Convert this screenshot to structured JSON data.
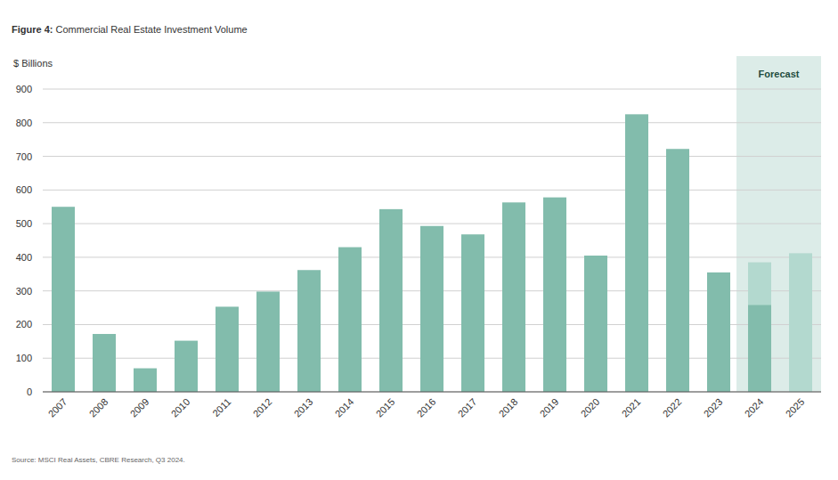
{
  "chart_data": {
    "type": "bar",
    "title": "Figure 4: Commercial Real Estate Investment Volume",
    "y_label": "$ Billions",
    "source": "Source: MSCI Real Assets, CBRE Research, Q3 2024.",
    "categories": [
      "2007",
      "2008",
      "2009",
      "2010",
      "2011",
      "2012",
      "2013",
      "2014",
      "2015",
      "2016",
      "2017",
      "2018",
      "2019",
      "2020",
      "2021",
      "2022",
      "2023",
      "2024",
      "2025"
    ],
    "series": [
      {
        "color": "#b3d9cf",
        "values": [
          null,
          null,
          null,
          null,
          null,
          null,
          null,
          null,
          null,
          null,
          null,
          null,
          null,
          null,
          null,
          null,
          null,
          385,
          412
        ]
      },
      {
        "color": "#82bcac",
        "values": [
          550,
          172,
          70,
          152,
          253,
          298,
          362,
          430,
          543,
          493,
          468,
          563,
          578,
          405,
          825,
          722,
          355,
          258,
          null
        ]
      }
    ],
    "annotations": [
      {
        "text": "Forecast",
        "categories": [
          "2024",
          "2025"
        ]
      }
    ],
    "ylim": [
      0,
      900
    ],
    "yticks": [
      0,
      100,
      200,
      300,
      400,
      500,
      600,
      700,
      800,
      900
    ],
    "grid": true,
    "stacked": false
  }
}
